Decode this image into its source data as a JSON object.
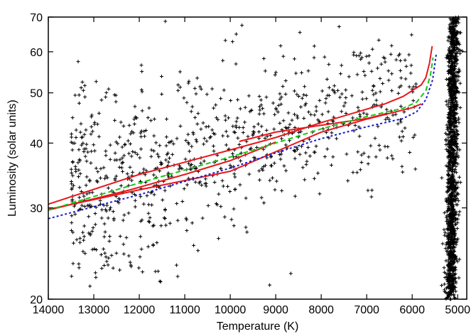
{
  "chart_data": {
    "type": "scatter",
    "title": "",
    "xlabel": "Temperature (K)",
    "ylabel": "Luminosity (solar units)",
    "xlim": [
      14000,
      4800
    ],
    "ylim": [
      20,
      70
    ],
    "x_reversed": true,
    "y_scale": "log",
    "grid": false,
    "x_ticks": [
      14000,
      13000,
      12000,
      11000,
      10000,
      9000,
      8000,
      7000,
      6000,
      5000
    ],
    "x_tick_labels": [
      "14000",
      "13000",
      "12000",
      "11000",
      "10000",
      "9000",
      "8000",
      "7000",
      "6000",
      "5000"
    ],
    "y_ticks": [
      20,
      30,
      40,
      50,
      60,
      70
    ],
    "y_tick_labels": [
      "20",
      "30",
      "40",
      "50",
      "60",
      "70"
    ],
    "scatter_marker": "+",
    "scatter_color": "#000000",
    "scatter_model": {
      "horizontal_branch": {
        "count": 900,
        "x_range": [
          13500,
          5900
        ],
        "center_at_9500": 41,
        "spread_dex": 0.07
      },
      "giant_branch": {
        "count": 1400,
        "x_center": 5150,
        "x_spread": 60,
        "y_range": [
          20,
          70
        ]
      }
    },
    "series": [
      {
        "style": "solid",
        "color": "#e8171c",
        "x": [
          14000,
          12000,
          10000,
          9000,
          8000,
          7000,
          6600,
          6200,
          6000,
          5800,
          5700,
          5620,
          5560
        ],
        "y": [
          30.5,
          34.8,
          38.8,
          41.0,
          43.8,
          46.5,
          47.6,
          49.2,
          50.5,
          51.8,
          53.5,
          57.0,
          61.5
        ]
      },
      {
        "style": "solid",
        "color": "#e8171c",
        "x": [
          14000,
          12000,
          10000,
          9000,
          8000,
          7000,
          6000,
          5800
        ],
        "y": [
          29.8,
          32.5,
          35.3,
          38.5,
          42.0,
          44.5,
          46.8,
          47.6
        ]
      },
      {
        "style": "solid",
        "color": "#e8171c",
        "x": [
          14000,
          12200,
          11000,
          10000,
          9400,
          9000
        ],
        "y": [
          29.7,
          32.5,
          34.8,
          37.0,
          38.8,
          40.2
        ]
      },
      {
        "style": "solid",
        "color": "#e8171c",
        "x": [
          9800,
          9000,
          8000,
          7000,
          6600
        ],
        "y": [
          40.3,
          42.0,
          43.3,
          44.6,
          45.5
        ]
      },
      {
        "style": "dashed",
        "color": "#14c814",
        "x": [
          14000,
          12000,
          10000,
          9000,
          8000,
          7000,
          6200,
          5900,
          5700,
          5600,
          5540
        ],
        "y": [
          29.7,
          33.5,
          37.6,
          40.0,
          42.6,
          45.0,
          46.7,
          48.0,
          50.5,
          54.0,
          58.5
        ]
      },
      {
        "style": "dotted",
        "color": "#1a1ad0",
        "x": [
          14000,
          12000,
          10000,
          9000,
          8000,
          7000,
          6200,
          5900,
          5700,
          5550,
          5470
        ],
        "y": [
          28.6,
          31.8,
          35.8,
          38.3,
          40.8,
          43.0,
          44.6,
          46.0,
          48.5,
          53.0,
          59.5
        ]
      }
    ]
  }
}
